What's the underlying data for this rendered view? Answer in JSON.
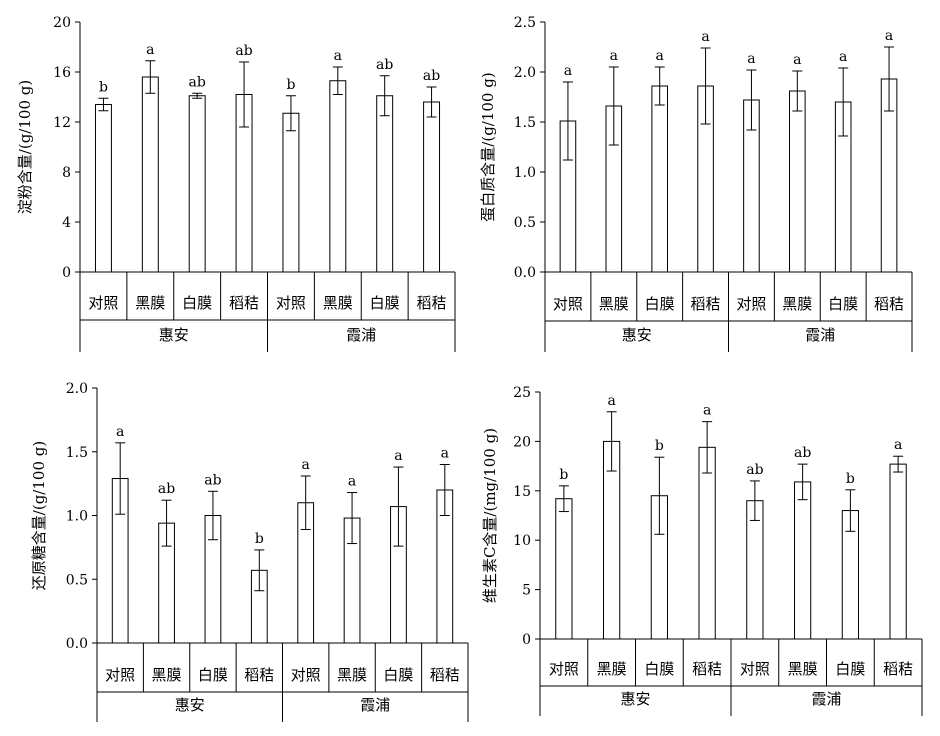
{
  "chart_data": [
    {
      "type": "bar",
      "ylabel": "淀粉含量/(g/100 g)",
      "ylim": [
        0,
        20
      ],
      "yticks": [
        "0",
        "4",
        "8",
        "12",
        "16",
        "20"
      ],
      "groups": [
        "惠安",
        "霞浦"
      ],
      "categories": [
        "对照",
        "黑膜",
        "白膜",
        "稻秸",
        "对照",
        "黑膜",
        "白膜",
        "稻秸"
      ],
      "values": [
        13.4,
        15.6,
        14.1,
        14.2,
        12.7,
        15.3,
        14.1,
        13.6
      ],
      "errors": [
        0.5,
        1.3,
        0.2,
        2.6,
        1.4,
        1.1,
        1.6,
        1.2
      ],
      "letters": [
        "b",
        "a",
        "ab",
        "ab",
        "b",
        "a",
        "ab",
        "ab"
      ]
    },
    {
      "type": "bar",
      "ylabel": "蛋白质含量/(g/100 g)",
      "ylim": [
        0,
        2.5
      ],
      "yticks": [
        "0.0",
        "0.5",
        "1.0",
        "1.5",
        "2.0",
        "2.5"
      ],
      "groups": [
        "惠安",
        "霞浦"
      ],
      "categories": [
        "对照",
        "黑膜",
        "白膜",
        "稻秸",
        "对照",
        "黑膜",
        "白膜",
        "稻秸"
      ],
      "values": [
        1.51,
        1.66,
        1.86,
        1.86,
        1.72,
        1.81,
        1.7,
        1.93
      ],
      "errors": [
        0.39,
        0.39,
        0.19,
        0.38,
        0.3,
        0.2,
        0.34,
        0.32
      ],
      "letters": [
        "a",
        "a",
        "a",
        "a",
        "a",
        "a",
        "a",
        "a"
      ]
    },
    {
      "type": "bar",
      "ylabel": "还原糖含量/(g/100 g)",
      "ylim": [
        0,
        2.0
      ],
      "yticks": [
        "0.0",
        "0.5",
        "1.0",
        "1.5",
        "2.0"
      ],
      "groups": [
        "惠安",
        "霞浦"
      ],
      "categories": [
        "对照",
        "黑膜",
        "白膜",
        "稻秸",
        "对照",
        "黑膜",
        "白膜",
        "稻秸"
      ],
      "values": [
        1.29,
        0.94,
        1.0,
        0.57,
        1.1,
        0.98,
        1.07,
        1.2
      ],
      "errors": [
        0.28,
        0.18,
        0.19,
        0.16,
        0.21,
        0.2,
        0.31,
        0.2
      ],
      "letters": [
        "a",
        "ab",
        "ab",
        "b",
        "a",
        "a",
        "a",
        "a"
      ]
    },
    {
      "type": "bar",
      "ylabel": "维生素C含量/(mg/100 g)",
      "ylim": [
        0,
        25
      ],
      "yticks": [
        "0",
        "5",
        "10",
        "15",
        "20",
        "25"
      ],
      "groups": [
        "惠安",
        "霞浦"
      ],
      "categories": [
        "对照",
        "黑膜",
        "白膜",
        "稻秸",
        "对照",
        "黑膜",
        "白膜",
        "稻秸"
      ],
      "values": [
        14.2,
        20.0,
        14.5,
        19.4,
        14.0,
        15.9,
        13.0,
        17.7
      ],
      "errors": [
        1.3,
        3.0,
        3.9,
        2.6,
        2.0,
        1.8,
        2.1,
        0.8
      ],
      "letters": [
        "b",
        "a",
        "b",
        "a",
        "ab",
        "ab",
        "b",
        "a"
      ]
    }
  ]
}
